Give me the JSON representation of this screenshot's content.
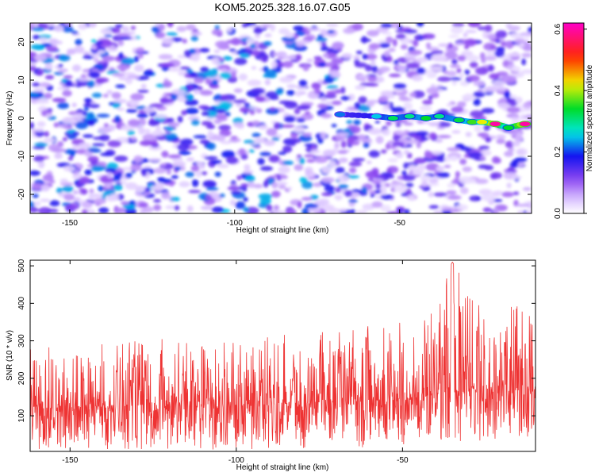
{
  "chart_data": [
    {
      "type": "heatmap",
      "title": "KOM5.2025.328.16.07.G05",
      "xlabel": "Height of straight line (km)",
      "ylabel": "Frequency (Hz)",
      "xlim": [
        -162,
        -10
      ],
      "ylim": [
        -25,
        25
      ],
      "x_ticks": [
        -150,
        -100,
        -50
      ],
      "y_ticks": [
        -20,
        -10,
        0,
        10,
        20
      ],
      "x_tick_labels": [
        "-150",
        "-100",
        "-50"
      ],
      "y_tick_labels": [
        "-20",
        "-10",
        "0",
        "10",
        "20"
      ],
      "colorbar": {
        "label": "Normalized spectral amplitude",
        "range": [
          0.0,
          0.62
        ],
        "ticks": [
          0.0,
          0.2,
          0.4,
          0.6
        ],
        "tick_labels": [
          "0.0",
          "0.2",
          "0.4",
          "0.6"
        ]
      },
      "background_level": 0.12,
      "signal_track": [
        {
          "x": -68,
          "y": 1.0,
          "v": 0.22
        },
        {
          "x": -57,
          "y": 0.5,
          "v": 0.25
        },
        {
          "x": -52,
          "y": 0.0,
          "v": 0.32
        },
        {
          "x": -47,
          "y": 0.5,
          "v": 0.3
        },
        {
          "x": -42,
          "y": 0.0,
          "v": 0.34
        },
        {
          "x": -38,
          "y": 0.5,
          "v": 0.3
        },
        {
          "x": -32,
          "y": -0.5,
          "v": 0.33
        },
        {
          "x": -28,
          "y": -1.0,
          "v": 0.36
        },
        {
          "x": -25,
          "y": -1.0,
          "v": 0.42
        },
        {
          "x": -21,
          "y": -1.5,
          "v": 0.6
        },
        {
          "x": -17,
          "y": -2.5,
          "v": 0.34
        },
        {
          "x": -12,
          "y": -1.5,
          "v": 0.6
        }
      ],
      "grid": false
    },
    {
      "type": "line",
      "xlabel": "Height of straight line (km)",
      "ylabel": "SNR (10 * v/v)",
      "xlim": [
        -162,
        -10
      ],
      "ylim": [
        5,
        515
      ],
      "x_ticks": [
        -150,
        -100,
        -50
      ],
      "y_ticks": [
        100,
        200,
        300,
        400,
        500
      ],
      "x_tick_labels": [
        "-150",
        "-100",
        "-50"
      ],
      "y_tick_labels": [
        "100",
        "200",
        "300",
        "400",
        "500"
      ],
      "series": [
        {
          "color": "#ee3333",
          "envelope": [
            {
              "x": -162,
              "low": 10,
              "mid": 125,
              "high": 290
            },
            {
              "x": -140,
              "low": 10,
              "mid": 125,
              "high": 300
            },
            {
              "x": -120,
              "low": 10,
              "mid": 130,
              "high": 310
            },
            {
              "x": -100,
              "low": 10,
              "mid": 130,
              "high": 310
            },
            {
              "x": -80,
              "low": 10,
              "mid": 135,
              "high": 320
            },
            {
              "x": -60,
              "low": 15,
              "mid": 140,
              "high": 340
            },
            {
              "x": -45,
              "low": 20,
              "mid": 150,
              "high": 360
            },
            {
              "x": -35,
              "low": 30,
              "mid": 170,
              "high": 510
            },
            {
              "x": -25,
              "low": 30,
              "mid": 170,
              "high": 380
            },
            {
              "x": -15,
              "low": 40,
              "mid": 180,
              "high": 400
            },
            {
              "x": -10,
              "low": 30,
              "mid": 170,
              "high": 360
            }
          ]
        }
      ],
      "grid": false
    }
  ]
}
